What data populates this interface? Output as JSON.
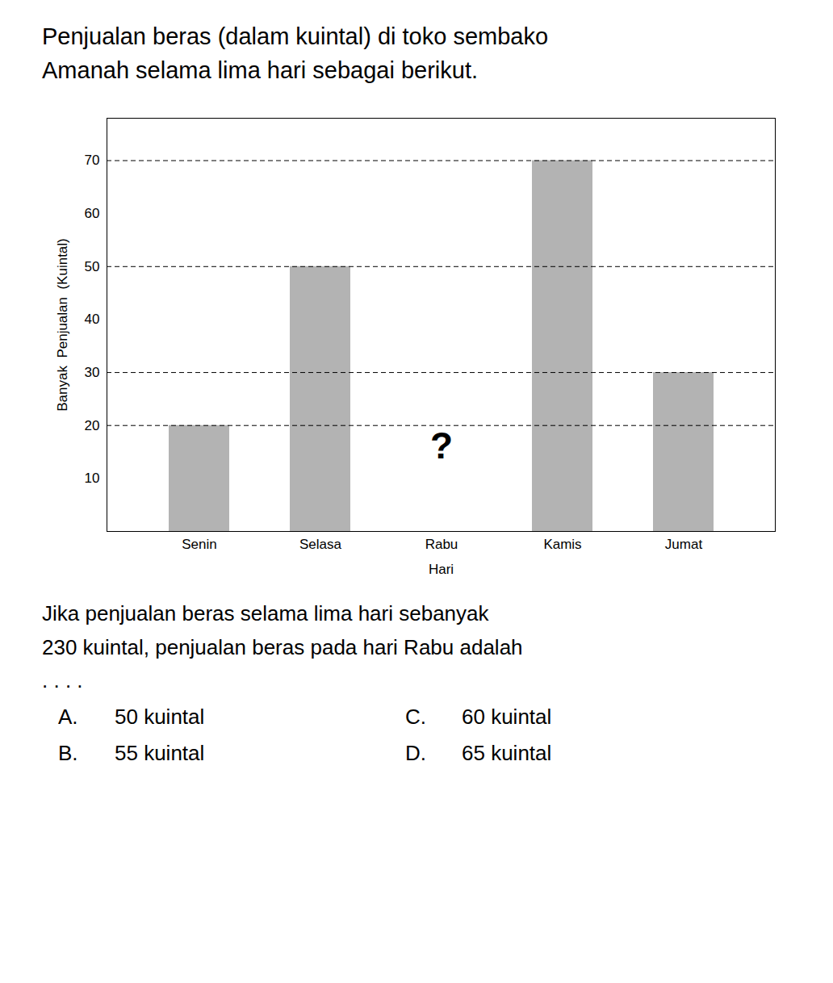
{
  "chart_data": {
    "type": "bar",
    "title": "Penjualan beras (dalam kuintal) di toko sembako\nAmanah selama lima hari sebagai berikut.",
    "xlabel": "Hari",
    "ylabel": "Banyak  Penjualan  (Kuintal)",
    "categories": [
      "Senin",
      "Selasa",
      "Rabu",
      "Kamis",
      "Jumat"
    ],
    "values": [
      20,
      50,
      null,
      70,
      30
    ],
    "color": "#b3b3b3",
    "ylim": [
      0,
      78
    ],
    "yticks": [
      10,
      20,
      30,
      40,
      50,
      60,
      70
    ],
    "grid": false,
    "reference_lines": [
      20,
      30,
      50,
      70
    ],
    "annotations": [
      {
        "text": "?",
        "x": "Rabu",
        "y": 16
      }
    ],
    "caption": "Jika penjualan beras selama lima hari sebanyak\n230 kuintal, penjualan beras pada hari Rabu adalah\n. . . .",
    "options": [
      [
        "A.",
        "50 kuintal",
        "C.",
        "60 kuintal"
      ],
      [
        "B.",
        "55 kuintal",
        "D.",
        "65 kuintal"
      ]
    ]
  }
}
